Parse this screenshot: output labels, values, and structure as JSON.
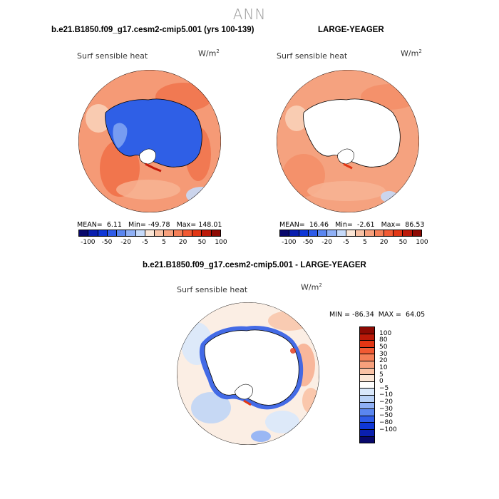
{
  "figure": {
    "title": "ANN"
  },
  "panels": {
    "top_left": {
      "case_title": "b.e21.B1850.f09_g17.cesm2-cmip5.001 (yrs 100-139)",
      "variable": "Surf sensible heat",
      "units_base": "W/m",
      "units_exp": "2",
      "mean_label": "MEAN=",
      "mean_value": "6.11",
      "min_label": "Min=",
      "min_value": "-49.78",
      "max_label": "Max=",
      "max_value": "148.01"
    },
    "top_right": {
      "case_title": "LARGE-YEAGER",
      "variable": "Surf sensible heat",
      "units_base": "W/m",
      "units_exp": "2",
      "mean_label": "MEAN=",
      "mean_value": "16.46",
      "min_label": "Min=",
      "min_value": "-2.61",
      "max_label": "Max=",
      "max_value": "86.53"
    },
    "bottom": {
      "case_title": "b.e21.B1850.f09_g17.cesm2-cmip5.001 - LARGE-YEAGER",
      "variable": "Surf sensible heat",
      "units_base": "W/m",
      "units_exp": "2",
      "min_label": "MIN =",
      "min_value": "-86.34",
      "max_label": "MAX =",
      "max_value": "64.05"
    }
  },
  "colorbar_top": {
    "colors": [
      "#08086b",
      "#0a1fae",
      "#0f37d6",
      "#2e5be8",
      "#5a86f0",
      "#8fb0f5",
      "#c6daf9",
      "#fbe6d6",
      "#f9c2a5",
      "#f7a07c",
      "#f57f57",
      "#f25a33",
      "#e23614",
      "#bb1908",
      "#8d0a03"
    ],
    "tick_labels": [
      "-100",
      "-50",
      "-20",
      "-5",
      "5",
      "20",
      "50",
      "100"
    ]
  },
  "colorbar_bottom": {
    "colors": [
      "#8d0a03",
      "#bb1908",
      "#e23614",
      "#f25a33",
      "#f57f57",
      "#f7a07c",
      "#f9c2a5",
      "#fbe6d6",
      "#ffffff",
      "#d9e8fb",
      "#b9d2f7",
      "#8fb0f5",
      "#5a86f0",
      "#2e5be8",
      "#0f37d6",
      "#0a1fae",
      "#08086b"
    ],
    "tick_labels": [
      "100",
      "80",
      "50",
      "30",
      "20",
      "10",
      "5",
      "0",
      "-5",
      "-10",
      "-20",
      "-30",
      "-50",
      "-80",
      "-100"
    ]
  },
  "maps": {
    "top_left": {
      "ocean_color": "#f59a76",
      "continent_color": "#2f5fe6",
      "continent_edge": "#7fa3f2"
    },
    "top_right": {
      "ocean_color": "#f5a27f",
      "continent_color": "#ffffff",
      "continent_edge": "#ffffff"
    },
    "bottom": {
      "ocean_color": "#fbeee4",
      "continent_color": "#ffffff",
      "continent_edge": "#3a63e6"
    }
  }
}
